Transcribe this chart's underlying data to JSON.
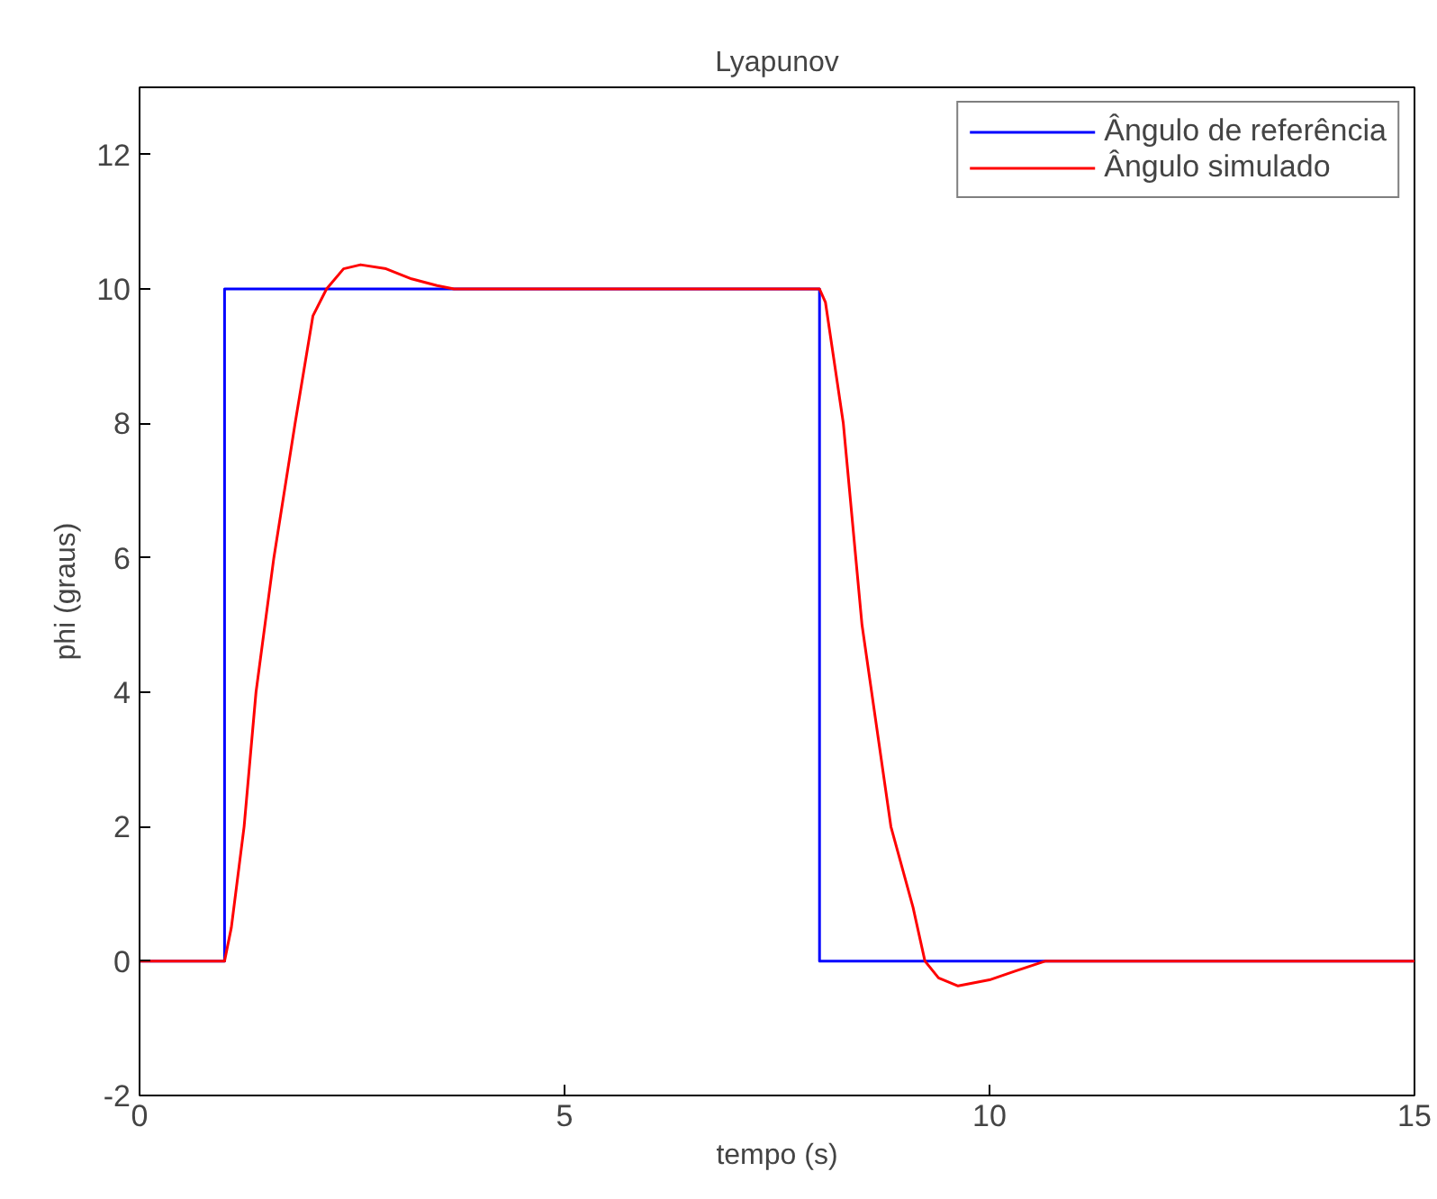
{
  "chart_data": {
    "type": "line",
    "title": "Lyapunov",
    "xlabel": "tempo (s)",
    "ylabel": "phi (graus)",
    "xlim": [
      0,
      15
    ],
    "ylim": [
      -2,
      13
    ],
    "xticks": [
      0,
      5,
      10,
      15
    ],
    "yticks": [
      -2,
      0,
      2,
      4,
      6,
      8,
      10,
      12
    ],
    "grid": false,
    "legend": "top right",
    "marker": "none",
    "line_style": "solid",
    "series": [
      {
        "name": "Ângulo de referência",
        "color": "#0000ff",
        "x": [
          0,
          1,
          1,
          8,
          8,
          15
        ],
        "values": [
          0,
          0,
          10,
          10,
          0,
          0
        ]
      },
      {
        "name": "Ângulo simulado",
        "color": "#ff0000",
        "x": [
          0,
          1,
          1.08,
          1.23,
          1.37,
          1.58,
          1.83,
          2.04,
          2.2,
          2.4,
          2.6,
          2.9,
          3.2,
          3.5,
          3.7,
          8,
          8.07,
          8.28,
          8.5,
          8.84,
          9.1,
          9.24,
          9.4,
          9.63,
          10,
          10.3,
          10.66,
          15
        ],
        "values": [
          0,
          0,
          0.5,
          2,
          4,
          6,
          8,
          9.6,
          10,
          10.3,
          10.36,
          10.3,
          10.15,
          10.05,
          10,
          10,
          9.8,
          8,
          5,
          2,
          0.8,
          0,
          -0.25,
          -0.37,
          -0.28,
          -0.15,
          0,
          0
        ]
      }
    ]
  }
}
